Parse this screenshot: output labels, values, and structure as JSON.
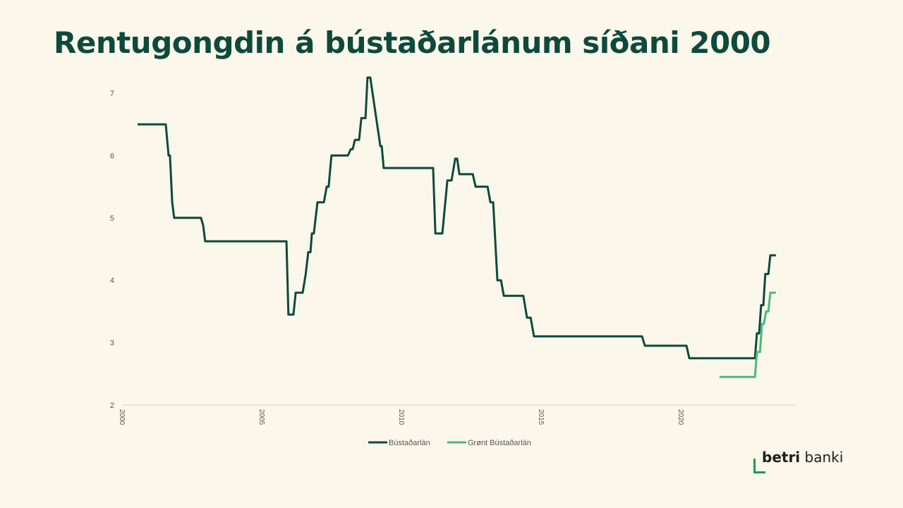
{
  "title": "Rentugongdin á bústaðarlánum síðani 2000",
  "logo": {
    "bold": "betri",
    "light": "banki"
  },
  "chart_data": {
    "type": "line",
    "title": "Rentugongdin á bústaðarlánum síðani 2000",
    "xlabel": "",
    "ylabel": "",
    "xlim": [
      2000,
      2024.1
    ],
    "ylim": [
      2,
      7.3
    ],
    "x_ticks": [
      "2000",
      "2005",
      "2010",
      "2015",
      "2020"
    ],
    "y_ticks": [
      "2",
      "3",
      "4",
      "5",
      "6",
      "7"
    ],
    "grid": false,
    "legend_position": "bottom",
    "series": [
      {
        "name": "Bústaðarlán",
        "color": "#0d4a3c",
        "points": [
          [
            2000.53,
            6.5
          ],
          [
            2001.54,
            6.5
          ],
          [
            2001.64,
            6.0
          ],
          [
            2001.69,
            6.0
          ],
          [
            2001.77,
            5.25
          ],
          [
            2001.84,
            5.0
          ],
          [
            2002.8,
            5.0
          ],
          [
            2002.88,
            4.875
          ],
          [
            2002.95,
            4.625
          ],
          [
            2005.86,
            4.625
          ],
          [
            2005.93,
            3.45
          ],
          [
            2006.11,
            3.45
          ],
          [
            2006.19,
            3.8
          ],
          [
            2006.44,
            3.8
          ],
          [
            2006.55,
            4.1
          ],
          [
            2006.64,
            4.45
          ],
          [
            2006.72,
            4.45
          ],
          [
            2006.77,
            4.75
          ],
          [
            2006.84,
            4.75
          ],
          [
            2006.97,
            5.25
          ],
          [
            2007.2,
            5.25
          ],
          [
            2007.3,
            5.5
          ],
          [
            2007.37,
            5.5
          ],
          [
            2007.47,
            6.0
          ],
          [
            2008.06,
            6.0
          ],
          [
            2008.16,
            6.1
          ],
          [
            2008.23,
            6.1
          ],
          [
            2008.31,
            6.25
          ],
          [
            2008.46,
            6.25
          ],
          [
            2008.54,
            6.6
          ],
          [
            2008.69,
            6.6
          ],
          [
            2008.76,
            7.25
          ],
          [
            2008.86,
            7.25
          ],
          [
            2009.22,
            6.15
          ],
          [
            2009.27,
            6.15
          ],
          [
            2009.34,
            5.8
          ],
          [
            2011.11,
            5.8
          ],
          [
            2011.19,
            4.75
          ],
          [
            2011.44,
            4.75
          ],
          [
            2011.62,
            5.6
          ],
          [
            2011.77,
            5.6
          ],
          [
            2011.9,
            5.95
          ],
          [
            2011.97,
            5.95
          ],
          [
            2012.05,
            5.7
          ],
          [
            2012.53,
            5.7
          ],
          [
            2012.63,
            5.5
          ],
          [
            2013.06,
            5.5
          ],
          [
            2013.16,
            5.25
          ],
          [
            2013.26,
            5.25
          ],
          [
            2013.41,
            4.0
          ],
          [
            2013.54,
            4.0
          ],
          [
            2013.64,
            3.75
          ],
          [
            2014.34,
            3.75
          ],
          [
            2014.47,
            3.4
          ],
          [
            2014.6,
            3.4
          ],
          [
            2014.72,
            3.1
          ],
          [
            2018.59,
            3.1
          ],
          [
            2018.69,
            2.95
          ],
          [
            2020.18,
            2.95
          ],
          [
            2020.28,
            2.75
          ],
          [
            2022.63,
            2.75
          ],
          [
            2022.7,
            3.15
          ],
          [
            2022.78,
            3.15
          ],
          [
            2022.85,
            3.6
          ],
          [
            2022.93,
            3.6
          ],
          [
            2023.0,
            4.1
          ],
          [
            2023.11,
            4.1
          ],
          [
            2023.18,
            4.4
          ],
          [
            2023.38,
            4.4
          ]
        ]
      },
      {
        "name": "Grønt Bústaðarlán",
        "color": "#4cb87a",
        "points": [
          [
            2021.36,
            2.45
          ],
          [
            2022.63,
            2.45
          ],
          [
            2022.7,
            2.85
          ],
          [
            2022.81,
            2.85
          ],
          [
            2022.88,
            3.3
          ],
          [
            2022.95,
            3.3
          ],
          [
            2023.03,
            3.5
          ],
          [
            2023.11,
            3.5
          ],
          [
            2023.18,
            3.8
          ],
          [
            2023.38,
            3.8
          ]
        ]
      }
    ]
  }
}
